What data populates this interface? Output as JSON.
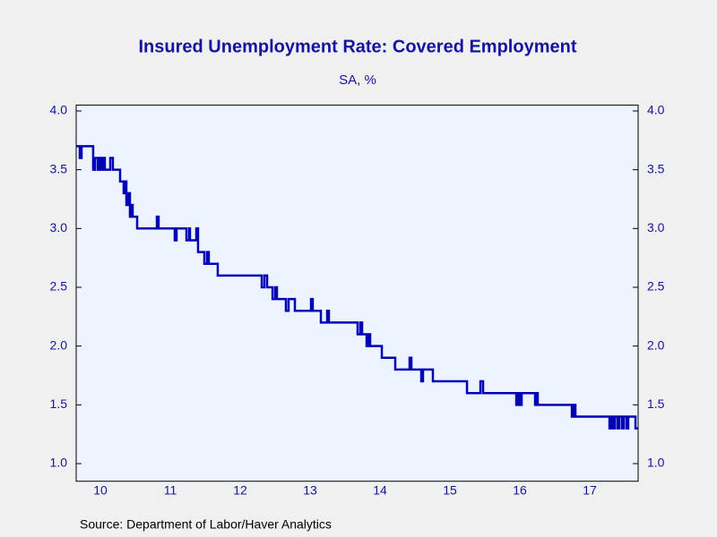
{
  "chart_data": {
    "type": "line",
    "title": "Insured Unemployment Rate: Covered Employment",
    "subtitle": "SA, %",
    "source": "Source:  Department of Labor/Haver Analytics",
    "xlim": [
      2010.154,
      2018.192
    ],
    "xticks": [
      {
        "value": 2010.5,
        "label": "10"
      },
      {
        "value": 2011.5,
        "label": "11"
      },
      {
        "value": 2012.5,
        "label": "12"
      },
      {
        "value": 2013.5,
        "label": "13"
      },
      {
        "value": 2014.5,
        "label": "14"
      },
      {
        "value": 2015.5,
        "label": "15"
      },
      {
        "value": 2016.5,
        "label": "16"
      },
      {
        "value": 2017.5,
        "label": "17"
      }
    ],
    "ylim": [
      0.85,
      4.05
    ],
    "yticks": [
      {
        "value": 1,
        "label": "1.0"
      },
      1.5,
      {
        "value": 2,
        "label": "2.0"
      },
      2.5,
      {
        "value": 3,
        "label": "3.0"
      },
      3.5,
      {
        "value": 4,
        "label": "4.0"
      }
    ],
    "y2lim": [
      0.85,
      4.05
    ],
    "y2ticks": [
      {
        "value": 1,
        "label": "1.0"
      },
      1.5,
      {
        "value": 2,
        "label": "2.0"
      },
      2.5,
      {
        "value": 3,
        "label": "3.0"
      },
      3.5,
      {
        "value": 4,
        "label": "4.0"
      }
    ],
    "grid": false,
    "series": [
      {
        "name": "Insured Unemployment Rate",
        "color": "#0000b4",
        "x": [
          2010.154,
          2010.205,
          2010.205,
          2010.231,
          2010.231,
          2010.397,
          2010.397,
          2010.423,
          2010.423,
          2010.462,
          2010.462,
          2010.487,
          2010.487,
          2010.513,
          2010.513,
          2010.538,
          2010.538,
          2010.564,
          2010.564,
          2010.641,
          2010.641,
          2010.679,
          2010.679,
          2010.782,
          2010.782,
          2010.833,
          2010.833,
          2010.846,
          2010.846,
          2010.872,
          2010.872,
          2010.897,
          2010.897,
          2010.923,
          2010.923,
          2010.949,
          2010.949,
          2010.962,
          2010.962,
          2011.026,
          2011.026,
          2011.308,
          2011.308,
          2011.333,
          2011.333,
          2011.564,
          2011.564,
          2011.59,
          2011.59,
          2011.731,
          2011.731,
          2011.769,
          2011.769,
          2011.782,
          2011.782,
          2011.872,
          2011.872,
          2011.897,
          2011.897,
          2011.987,
          2011.987,
          2012.026,
          2012.026,
          2012.051,
          2012.051,
          2012.179,
          2012.179,
          2012.808,
          2012.808,
          2012.846,
          2012.846,
          2012.885,
          2012.885,
          2012.962,
          2012.962,
          2013,
          2013,
          2013.026,
          2013.026,
          2013.154,
          2013.154,
          2013.192,
          2013.192,
          2013.282,
          2013.282,
          2013.513,
          2013.513,
          2013.538,
          2013.538,
          2013.654,
          2013.654,
          2013.744,
          2013.744,
          2013.769,
          2013.769,
          2014.179,
          2014.179,
          2014.218,
          2014.218,
          2014.244,
          2014.244,
          2014.308,
          2014.308,
          2014.333,
          2014.333,
          2014.359,
          2014.359,
          2014.526,
          2014.526,
          2014.718,
          2014.718,
          2014.923,
          2014.923,
          2014.949,
          2014.949,
          2015.09,
          2015.09,
          2015.115,
          2015.115,
          2015.256,
          2015.256,
          2015.744,
          2015.744,
          2015.936,
          2015.936,
          2015.974,
          2015.974,
          2016.449,
          2016.449,
          2016.474,
          2016.474,
          2016.5,
          2016.5,
          2016.526,
          2016.526,
          2016.718,
          2016.718,
          2016.744,
          2016.744,
          2016.756,
          2016.756,
          2017.244,
          2017.244,
          2017.269,
          2017.269,
          2017.295,
          2017.295,
          2017.782,
          2017.782,
          2017.808,
          2017.808,
          2017.833,
          2017.833,
          2017.859,
          2017.859,
          2017.897,
          2017.897,
          2017.923,
          2017.923,
          2017.962,
          2017.962,
          2017.987,
          2017.987,
          2018.026,
          2018.026,
          2018.051,
          2018.051,
          2018.154,
          2018.154,
          2018.192
        ],
        "values": [
          3.7,
          3.7,
          3.6,
          3.6,
          3.7,
          3.7,
          3.5,
          3.5,
          3.6,
          3.6,
          3.5,
          3.5,
          3.6,
          3.6,
          3.5,
          3.5,
          3.6,
          3.6,
          3.5,
          3.5,
          3.6,
          3.6,
          3.5,
          3.5,
          3.4,
          3.4,
          3.3,
          3.3,
          3.4,
          3.4,
          3.2,
          3.2,
          3.3,
          3.3,
          3.1,
          3.1,
          3.2,
          3.2,
          3.1,
          3.1,
          3.0,
          3.0,
          3.1,
          3.1,
          3.0,
          3.0,
          2.9,
          2.9,
          3.0,
          3.0,
          2.9,
          2.9,
          3.0,
          3.0,
          2.9,
          2.9,
          3.0,
          3.0,
          2.8,
          2.8,
          2.7,
          2.7,
          2.8,
          2.8,
          2.7,
          2.7,
          2.6,
          2.6,
          2.5,
          2.5,
          2.6,
          2.6,
          2.5,
          2.5,
          2.4,
          2.4,
          2.5,
          2.5,
          2.4,
          2.4,
          2.3,
          2.3,
          2.4,
          2.4,
          2.3,
          2.3,
          2.4,
          2.4,
          2.3,
          2.3,
          2.2,
          2.2,
          2.3,
          2.3,
          2.2,
          2.2,
          2.1,
          2.1,
          2.2,
          2.2,
          2.1,
          2.1,
          2.0,
          2.0,
          2.1,
          2.1,
          2.0,
          2.0,
          1.9,
          1.9,
          1.8,
          1.8,
          1.9,
          1.9,
          1.8,
          1.8,
          1.7,
          1.7,
          1.8,
          1.8,
          1.7,
          1.7,
          1.6,
          1.6,
          1.7,
          1.7,
          1.6,
          1.6,
          1.5,
          1.5,
          1.6,
          1.6,
          1.5,
          1.5,
          1.6,
          1.6,
          1.5,
          1.5,
          1.6,
          1.6,
          1.5,
          1.5,
          1.4,
          1.4,
          1.5,
          1.5,
          1.4,
          1.4,
          1.3,
          1.3,
          1.4,
          1.4,
          1.3,
          1.3,
          1.4,
          1.4,
          1.3,
          1.3,
          1.4,
          1.4,
          1.3,
          1.3,
          1.4,
          1.4,
          1.3,
          1.3,
          1.4,
          1.4,
          1.3,
          1.3
        ]
      }
    ]
  }
}
